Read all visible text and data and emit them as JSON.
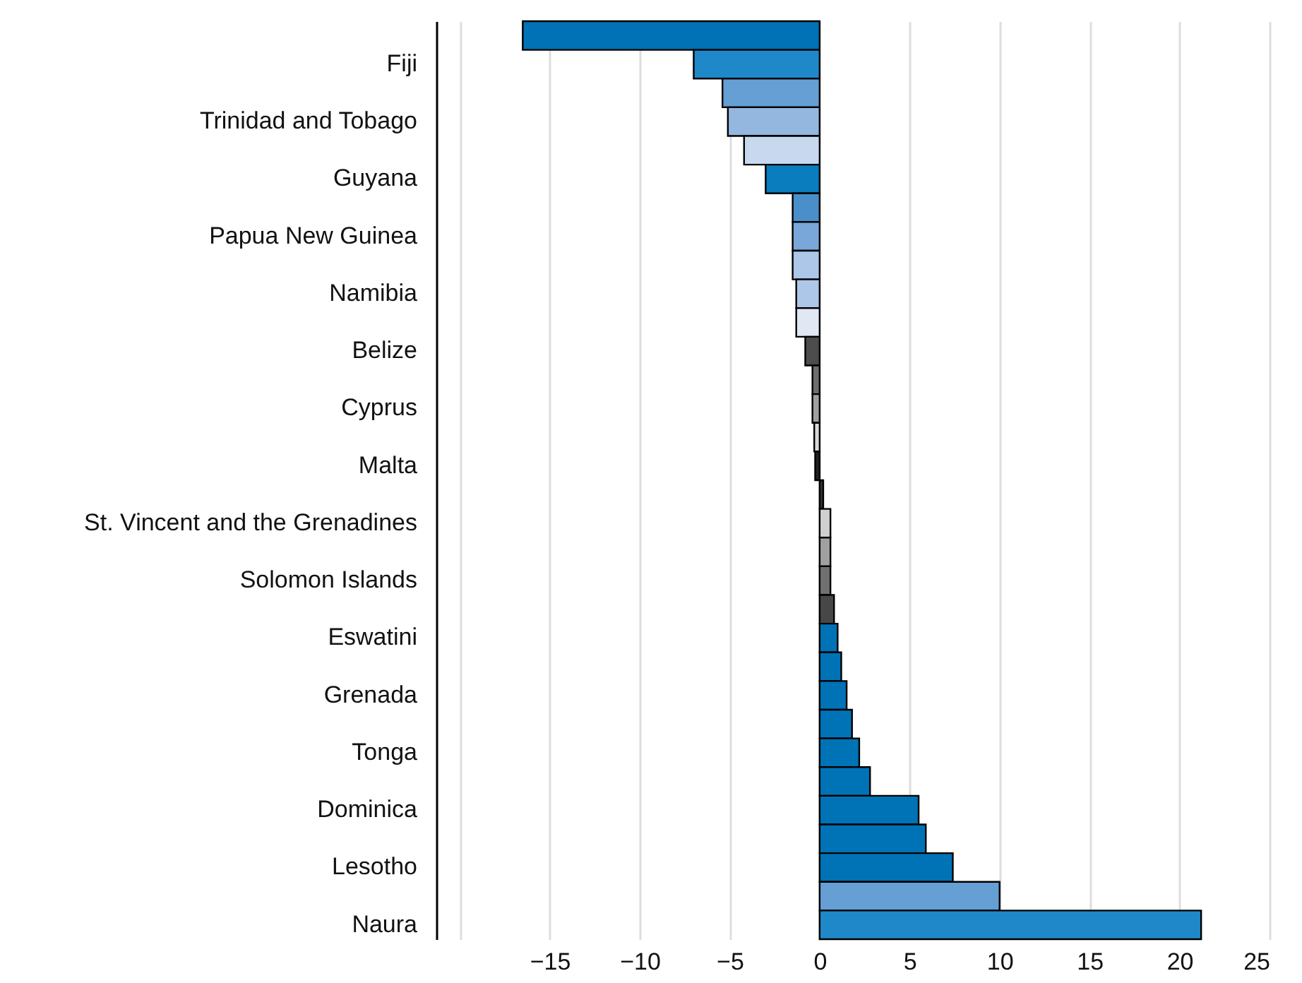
{
  "chart_data": {
    "type": "bar",
    "orientation": "horizontal",
    "categories": [
      null,
      "Fiji",
      null,
      "Trinidad and Tobago",
      null,
      "Guyana",
      null,
      "Papua New Guinea",
      null,
      "Namibia",
      null,
      "Belize",
      null,
      "Cyprus",
      null,
      "Malta",
      null,
      "St. Vincent and the Grenadines",
      null,
      "Solomon Islands",
      null,
      "Eswatini",
      null,
      "Grenada",
      null,
      "Tonga",
      null,
      "Dominica",
      null,
      "Lesotho",
      null,
      "Naura"
    ],
    "values": [
      -16.5,
      -7.0,
      -5.4,
      -5.1,
      -4.2,
      -3.0,
      -1.5,
      -1.5,
      -1.5,
      -1.3,
      -1.3,
      -0.8,
      -0.4,
      -0.4,
      -0.3,
      -0.25,
      0.2,
      0.6,
      0.6,
      0.6,
      0.8,
      1.0,
      1.2,
      1.5,
      1.8,
      2.2,
      2.8,
      5.5,
      5.9,
      7.4,
      10.0,
      21.2
    ],
    "colors": [
      "#0072b5",
      "#1f88c8",
      "#659fd4",
      "#93b7de",
      "#c8d8ee",
      "#0a7dbf",
      "#4a8fc9",
      "#7aa7d9",
      "#adc7e8",
      "#adc7e8",
      "#e2e8f3",
      "#4d4d4d",
      "#6e6e6e",
      "#a0a0a0",
      "#d8d8d8",
      "#222222",
      "#333333",
      "#d0d0d0",
      "#a0a0a0",
      "#707070",
      "#474747",
      "#0073b7",
      "#0073b7",
      "#0073b7",
      "#0073b7",
      "#0073b7",
      "#0073b7",
      "#0073b7",
      "#0073b7",
      "#0073b7",
      "#659fd4",
      "#1f88c8"
    ],
    "xlim": [
      -21.3,
      25
    ],
    "xticks": [
      {
        "value": -20,
        "label": null
      },
      -15,
      -10,
      -5,
      0,
      5,
      10,
      15,
      20,
      25
    ],
    "grid": "x"
  }
}
